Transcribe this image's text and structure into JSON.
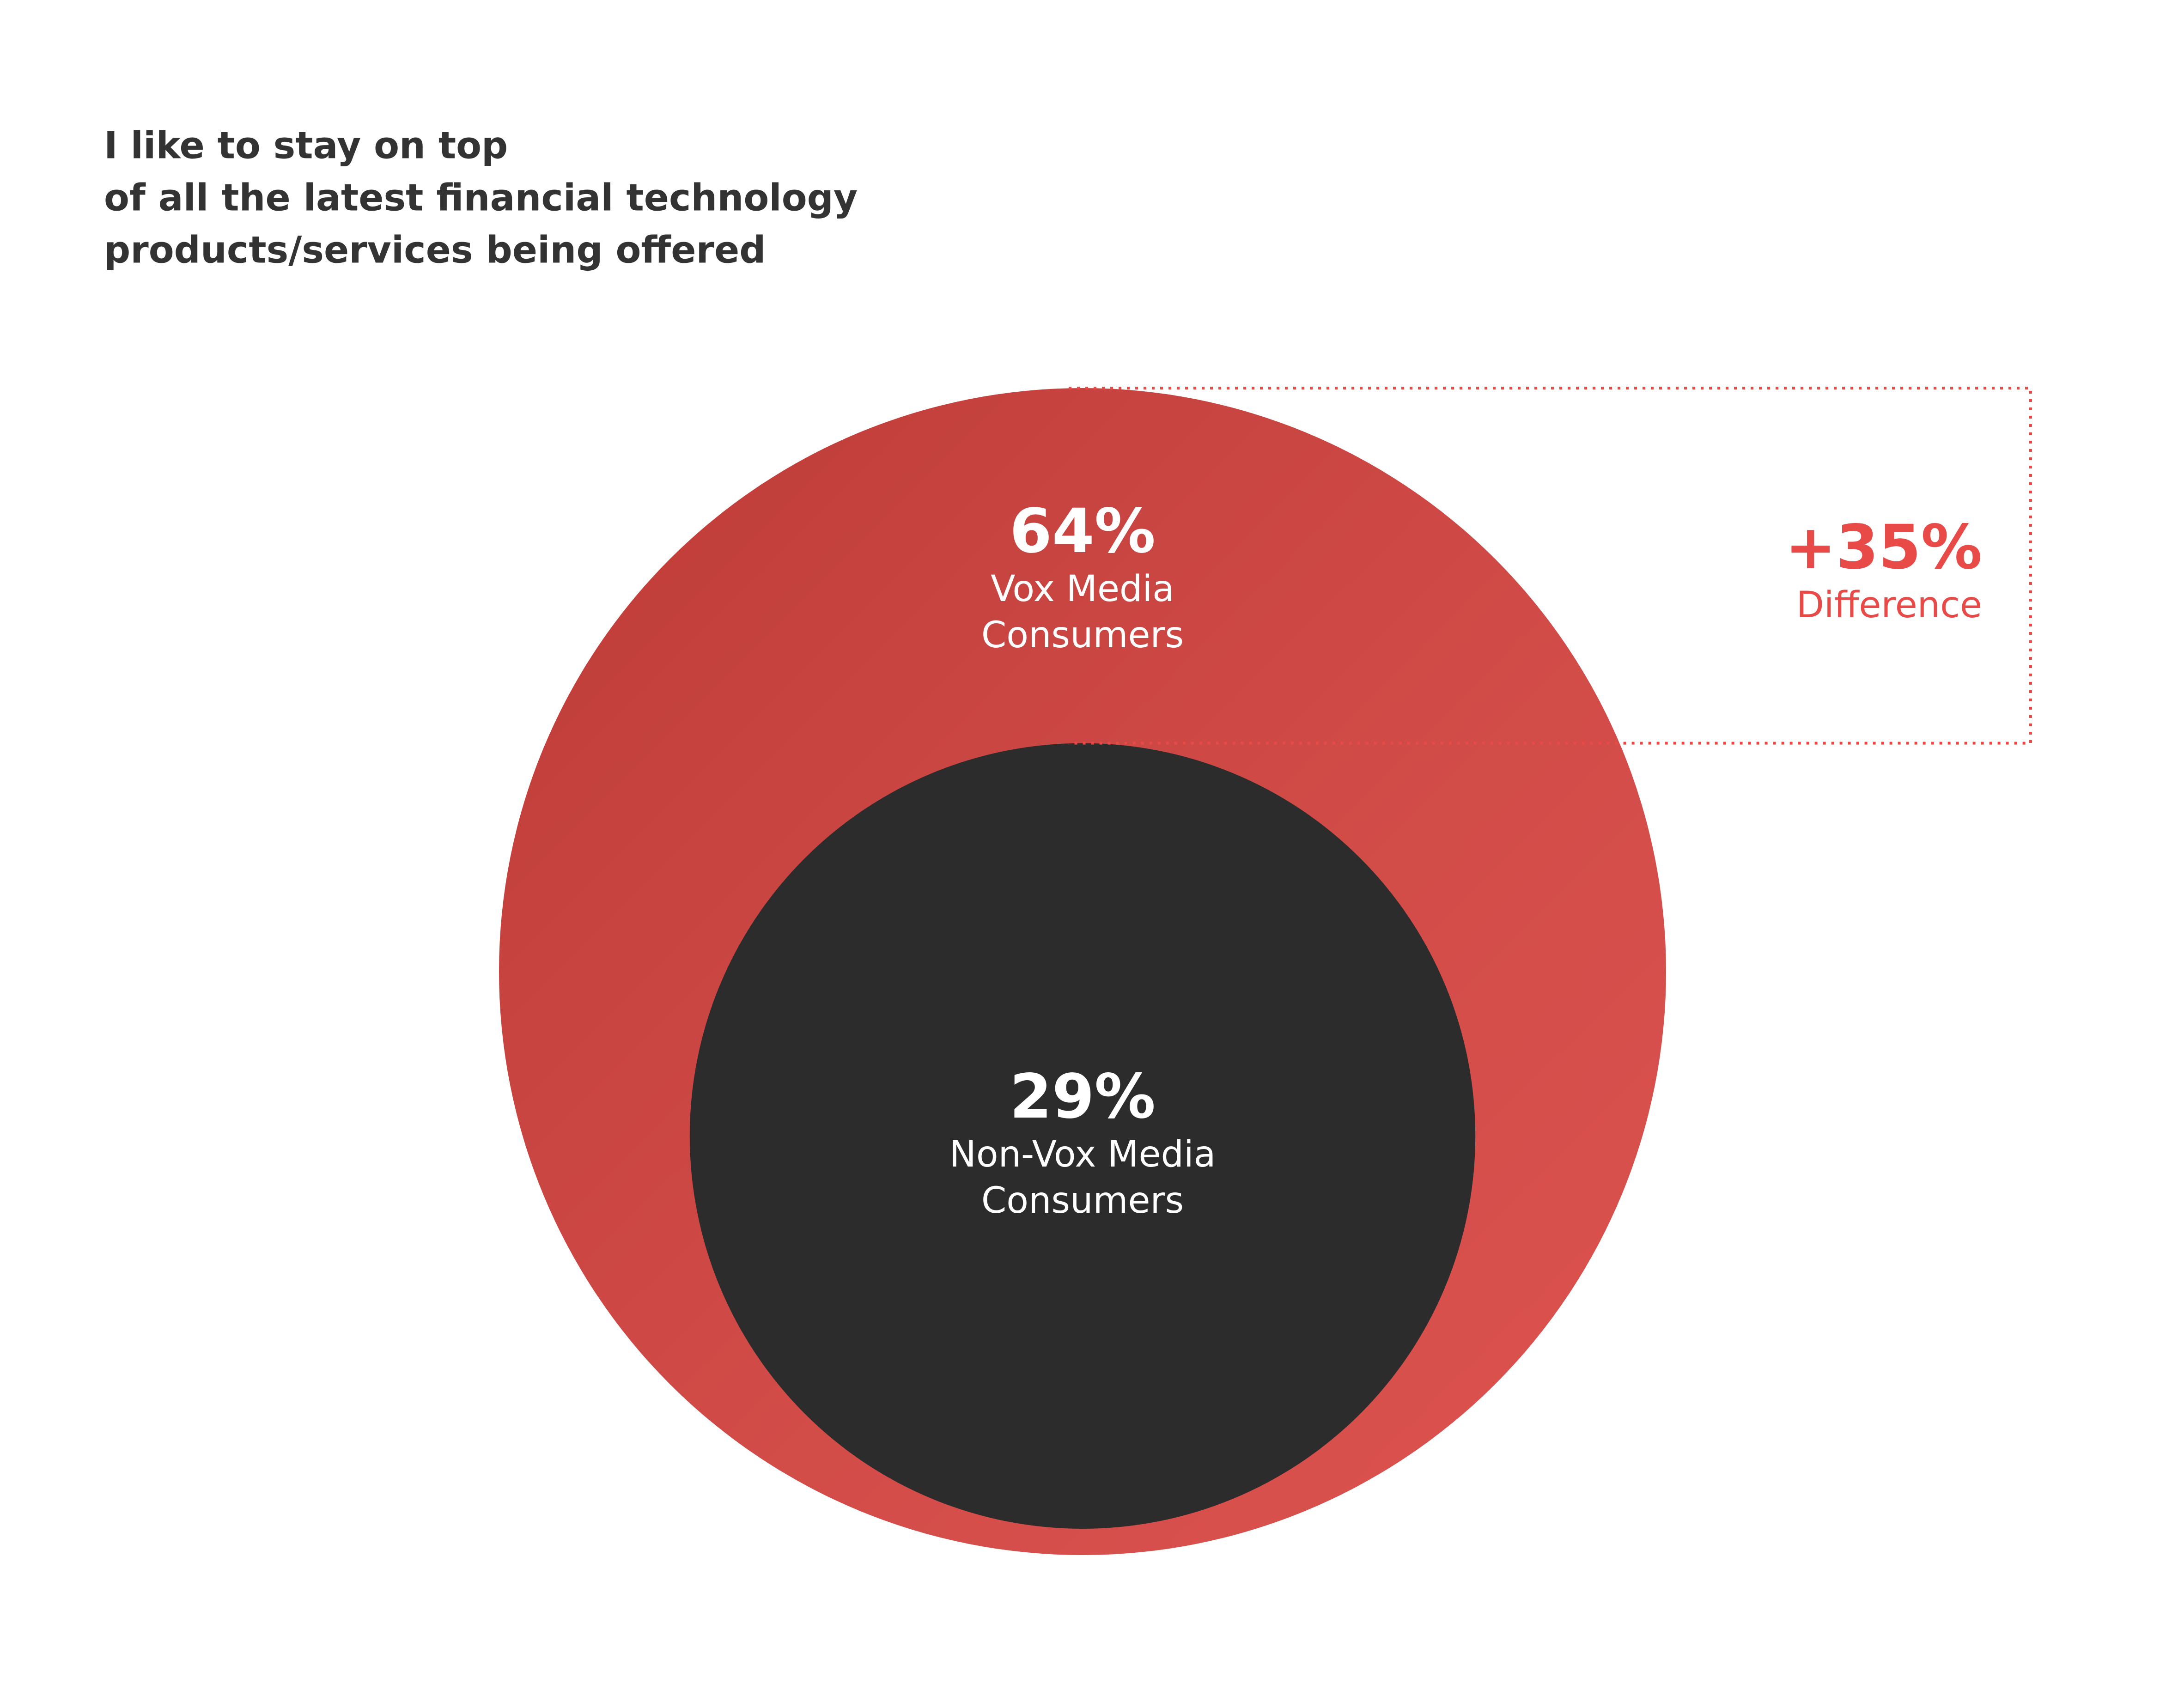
{
  "chart_data": {
    "type": "nested-circles",
    "title": [
      "I like to stay on top",
      "of all the latest financial technology",
      "products/services being offered"
    ],
    "series": [
      {
        "name": "Vox Media Consumers",
        "color": "#d9433f",
        "values": [
          64
        ],
        "value_labels": [
          "64%"
        ]
      },
      {
        "name": "Non-Vox Media Consumers",
        "color": "#2c2c2c",
        "values": [
          29
        ],
        "value_labels": [
          "29%"
        ]
      }
    ],
    "difference": {
      "value": 35,
      "label": "+35%",
      "text": "Difference",
      "color": "#e84a47"
    }
  }
}
